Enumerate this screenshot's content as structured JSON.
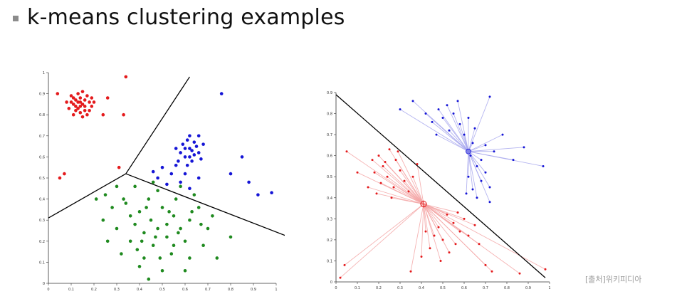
{
  "slide": {
    "title": "k-means clustering examples",
    "source": "[출처]위키피디아"
  },
  "colors": {
    "red": "#e41a1c",
    "blue": "#1515d6",
    "green": "#1f8a1f",
    "pink_fill": "#f4a6a6",
    "lavender_fill": "#a9a9ee"
  },
  "chart_data": [
    {
      "type": "scatter",
      "title": "",
      "xlabel": "",
      "ylabel": "",
      "xlim": [
        0,
        1
      ],
      "ylim": [
        0,
        1
      ],
      "xticks": [
        "0",
        "0.1",
        "0.2",
        "0.3",
        "0.4",
        "0.5",
        "0.6",
        "0.7",
        "0.8",
        "0.9",
        "1"
      ],
      "yticks": [
        "0",
        "0.1",
        "0.2",
        "0.3",
        "0.4",
        "0.5",
        "0.6",
        "0.7",
        "0.8",
        "0.9",
        "1"
      ],
      "series": [
        {
          "color": "red",
          "points": [
            [
              0.1,
              0.86
            ],
            [
              0.12,
              0.84
            ],
            [
              0.14,
              0.88
            ],
            [
              0.16,
              0.82
            ],
            [
              0.11,
              0.8
            ],
            [
              0.13,
              0.9
            ],
            [
              0.18,
              0.86
            ],
            [
              0.15,
              0.85
            ],
            [
              0.09,
              0.83
            ],
            [
              0.17,
              0.89
            ],
            [
              0.12,
              0.87
            ],
            [
              0.14,
              0.81
            ],
            [
              0.19,
              0.84
            ],
            [
              0.16,
              0.87
            ],
            [
              0.1,
              0.89
            ],
            [
              0.13,
              0.83
            ],
            [
              0.15,
              0.91
            ],
            [
              0.11,
              0.85
            ],
            [
              0.18,
              0.82
            ],
            [
              0.14,
              0.86
            ],
            [
              0.17,
              0.8
            ],
            [
              0.12,
              0.82
            ],
            [
              0.16,
              0.84
            ],
            [
              0.13,
              0.86
            ],
            [
              0.15,
              0.79
            ],
            [
              0.2,
              0.86
            ],
            [
              0.08,
              0.86
            ],
            [
              0.11,
              0.88
            ],
            [
              0.19,
              0.88
            ],
            [
              0.14,
              0.84
            ],
            [
              0.04,
              0.9
            ],
            [
              0.24,
              0.8
            ],
            [
              0.34,
              0.98
            ],
            [
              0.26,
              0.88
            ],
            [
              0.33,
              0.8
            ],
            [
              0.05,
              0.5
            ],
            [
              0.07,
              0.52
            ],
            [
              0.31,
              0.55
            ]
          ]
        },
        {
          "color": "blue",
          "points": [
            [
              0.62,
              0.64
            ],
            [
              0.6,
              0.6
            ],
            [
              0.64,
              0.67
            ],
            [
              0.58,
              0.62
            ],
            [
              0.66,
              0.62
            ],
            [
              0.63,
              0.58
            ],
            [
              0.61,
              0.68
            ],
            [
              0.65,
              0.65
            ],
            [
              0.59,
              0.66
            ],
            [
              0.67,
              0.59
            ],
            [
              0.62,
              0.7
            ],
            [
              0.57,
              0.58
            ],
            [
              0.64,
              0.61
            ],
            [
              0.6,
              0.64
            ],
            [
              0.68,
              0.66
            ],
            [
              0.63,
              0.63
            ],
            [
              0.56,
              0.64
            ],
            [
              0.61,
              0.56
            ],
            [
              0.66,
              0.7
            ],
            [
              0.62,
              0.6
            ],
            [
              0.5,
              0.55
            ],
            [
              0.54,
              0.52
            ],
            [
              0.48,
              0.5
            ],
            [
              0.58,
              0.48
            ],
            [
              0.52,
              0.47
            ],
            [
              0.62,
              0.45
            ],
            [
              0.66,
              0.5
            ],
            [
              0.46,
              0.53
            ],
            [
              0.56,
              0.56
            ],
            [
              0.6,
              0.52
            ],
            [
              0.8,
              0.52
            ],
            [
              0.85,
              0.6
            ],
            [
              0.88,
              0.48
            ],
            [
              0.92,
              0.42
            ],
            [
              0.76,
              0.9
            ],
            [
              0.98,
              0.43
            ]
          ]
        },
        {
          "color": "green",
          "points": [
            [
              0.48,
              0.26
            ],
            [
              0.45,
              0.3
            ],
            [
              0.52,
              0.22
            ],
            [
              0.42,
              0.24
            ],
            [
              0.55,
              0.32
            ],
            [
              0.4,
              0.34
            ],
            [
              0.58,
              0.26
            ],
            [
              0.46,
              0.18
            ],
            [
              0.5,
              0.36
            ],
            [
              0.38,
              0.28
            ],
            [
              0.62,
              0.3
            ],
            [
              0.44,
              0.4
            ],
            [
              0.54,
              0.14
            ],
            [
              0.36,
              0.2
            ],
            [
              0.6,
              0.2
            ],
            [
              0.42,
              0.12
            ],
            [
              0.66,
              0.36
            ],
            [
              0.34,
              0.38
            ],
            [
              0.48,
              0.44
            ],
            [
              0.56,
              0.4
            ],
            [
              0.3,
              0.26
            ],
            [
              0.7,
              0.26
            ],
            [
              0.4,
              0.08
            ],
            [
              0.5,
              0.06
            ],
            [
              0.62,
              0.12
            ],
            [
              0.32,
              0.14
            ],
            [
              0.72,
              0.32
            ],
            [
              0.28,
              0.36
            ],
            [
              0.46,
              0.48
            ],
            [
              0.58,
              0.46
            ],
            [
              0.64,
              0.42
            ],
            [
              0.38,
              0.46
            ],
            [
              0.3,
              0.46
            ],
            [
              0.24,
              0.3
            ],
            [
              0.26,
              0.2
            ],
            [
              0.68,
              0.18
            ],
            [
              0.44,
              0.02
            ],
            [
              0.52,
              0.28
            ],
            [
              0.47,
              0.22
            ],
            [
              0.53,
              0.34
            ],
            [
              0.41,
              0.2
            ],
            [
              0.57,
              0.24
            ],
            [
              0.36,
              0.32
            ],
            [
              0.63,
              0.34
            ],
            [
              0.49,
              0.12
            ],
            [
              0.43,
              0.36
            ],
            [
              0.55,
              0.18
            ],
            [
              0.33,
              0.4
            ],
            [
              0.67,
              0.28
            ],
            [
              0.39,
              0.16
            ],
            [
              0.25,
              0.42
            ],
            [
              0.21,
              0.4
            ],
            [
              0.8,
              0.22
            ],
            [
              0.74,
              0.12
            ],
            [
              0.6,
              0.06
            ]
          ]
        }
      ],
      "centroids": [
        {
          "color": "green",
          "x": 0.52,
          "y": 0.25
        }
      ],
      "boundaries": [
        [
          [
            0.0,
            0.31
          ],
          [
            0.34,
            0.52
          ]
        ],
        [
          [
            0.34,
            0.52
          ],
          [
            0.62,
            0.98
          ]
        ],
        [
          [
            0.34,
            0.52
          ],
          [
            1.08,
            0.21
          ]
        ]
      ]
    },
    {
      "type": "scatter",
      "title": "",
      "xlabel": "",
      "ylabel": "",
      "xlim": [
        0,
        1
      ],
      "ylim": [
        0,
        0.9
      ],
      "xticks": [
        "0",
        "0.1",
        "0.2",
        "0.3",
        "0.4",
        "0.5",
        "0.6",
        "0.7",
        "0.8",
        "0.9",
        "1"
      ],
      "yticks": [
        "0",
        "0.1",
        "0.2",
        "0.3",
        "0.4",
        "0.5",
        "0.6",
        "0.7",
        "0.8",
        "0.9"
      ],
      "series": [
        {
          "color": "red",
          "points": [
            [
              0.2,
              0.6
            ],
            [
              0.22,
              0.55
            ],
            [
              0.25,
              0.63
            ],
            [
              0.18,
              0.52
            ],
            [
              0.28,
              0.58
            ],
            [
              0.24,
              0.5
            ],
            [
              0.3,
              0.53
            ],
            [
              0.21,
              0.47
            ],
            [
              0.27,
              0.45
            ],
            [
              0.32,
              0.48
            ],
            [
              0.19,
              0.42
            ],
            [
              0.26,
              0.4
            ],
            [
              0.34,
              0.43
            ],
            [
              0.23,
              0.57
            ],
            [
              0.29,
              0.62
            ],
            [
              0.36,
              0.5
            ],
            [
              0.17,
              0.58
            ],
            [
              0.15,
              0.45
            ],
            [
              0.1,
              0.52
            ],
            [
              0.05,
              0.62
            ],
            [
              0.38,
              0.56
            ],
            [
              0.52,
              0.32
            ],
            [
              0.55,
              0.28
            ],
            [
              0.48,
              0.26
            ],
            [
              0.58,
              0.24
            ],
            [
              0.5,
              0.2
            ],
            [
              0.56,
              0.18
            ],
            [
              0.46,
              0.22
            ],
            [
              0.6,
              0.3
            ],
            [
              0.62,
              0.22
            ],
            [
              0.53,
              0.14
            ],
            [
              0.44,
              0.16
            ],
            [
              0.65,
              0.27
            ],
            [
              0.57,
              0.33
            ],
            [
              0.49,
              0.1
            ],
            [
              0.42,
              0.24
            ],
            [
              0.67,
              0.18
            ],
            [
              0.4,
              0.12
            ],
            [
              0.7,
              0.08
            ],
            [
              0.73,
              0.05
            ],
            [
              0.35,
              0.05
            ],
            [
              0.04,
              0.08
            ],
            [
              0.02,
              0.02
            ],
            [
              0.98,
              0.06
            ],
            [
              0.86,
              0.04
            ]
          ]
        },
        {
          "color": "blue",
          "points": [
            [
              0.5,
              0.78
            ],
            [
              0.53,
              0.72
            ],
            [
              0.48,
              0.82
            ],
            [
              0.55,
              0.8
            ],
            [
              0.58,
              0.75
            ],
            [
              0.45,
              0.76
            ],
            [
              0.52,
              0.84
            ],
            [
              0.6,
              0.7
            ],
            [
              0.62,
              0.78
            ],
            [
              0.42,
              0.8
            ],
            [
              0.57,
              0.86
            ],
            [
              0.65,
              0.73
            ],
            [
              0.47,
              0.7
            ],
            [
              0.63,
              0.6
            ],
            [
              0.66,
              0.55
            ],
            [
              0.62,
              0.5
            ],
            [
              0.68,
              0.48
            ],
            [
              0.64,
              0.44
            ],
            [
              0.7,
              0.52
            ],
            [
              0.66,
              0.4
            ],
            [
              0.72,
              0.45
            ],
            [
              0.68,
              0.58
            ],
            [
              0.61,
              0.42
            ],
            [
              0.74,
              0.62
            ],
            [
              0.7,
              0.65
            ],
            [
              0.64,
              0.66
            ],
            [
              0.72,
              0.38
            ],
            [
              0.3,
              0.82
            ],
            [
              0.36,
              0.86
            ],
            [
              0.72,
              0.88
            ],
            [
              0.88,
              0.64
            ],
            [
              0.97,
              0.55
            ],
            [
              0.78,
              0.7
            ],
            [
              0.83,
              0.58
            ]
          ]
        }
      ],
      "centroids": [
        {
          "color": "red",
          "x": 0.41,
          "y": 0.37
        },
        {
          "color": "blue",
          "x": 0.62,
          "y": 0.62
        }
      ],
      "boundaries": [
        [
          [
            0.0,
            0.89
          ],
          [
            0.98,
            0.02
          ]
        ]
      ]
    }
  ]
}
